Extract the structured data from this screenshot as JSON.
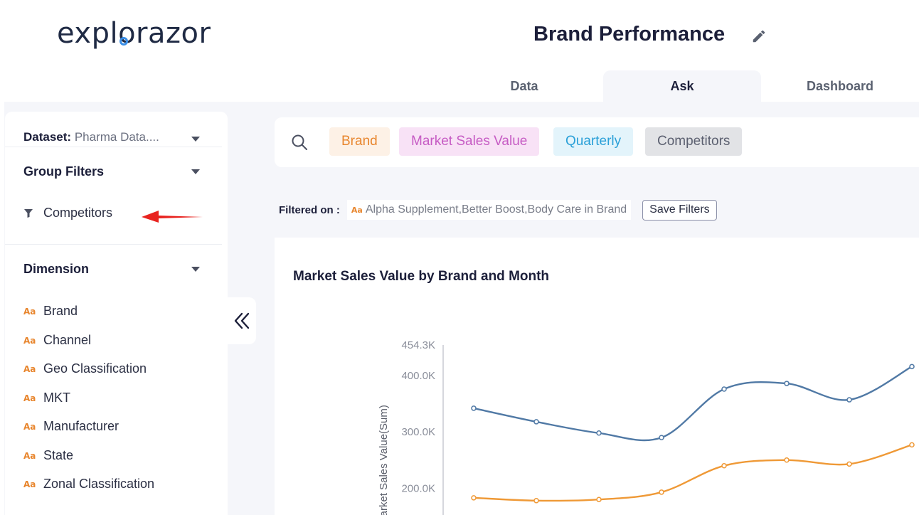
{
  "app": {
    "logo_text": "explorazor"
  },
  "header": {
    "title": "Brand Performance"
  },
  "tabs": [
    {
      "label": "Data",
      "active": false
    },
    {
      "label": "Ask",
      "active": true
    },
    {
      "label": "Dashboard",
      "active": false
    }
  ],
  "sidebar": {
    "dataset_label": "Dataset:",
    "dataset_value": "Pharma Data....",
    "group_filters_title": "Group Filters",
    "group_filter_item": "Competitors",
    "dimension_title": "Dimension",
    "dimensions": [
      "Brand",
      "Channel",
      "Geo Classification",
      "MKT",
      "Manufacturer",
      "State",
      "Zonal Classification"
    ],
    "aa_icon": "Aa"
  },
  "search": {
    "chips": {
      "brand": "Brand",
      "msv": "Market Sales Value",
      "quarterly": "Quarterly",
      "competitors": "Competitors"
    }
  },
  "filters": {
    "label": "Filtered on :",
    "value": "Alpha Supplement,Better Boost,Body Care in Brand",
    "save_label": "Save Filters"
  },
  "colors": {
    "accent_orange": "#e8862e",
    "series_blue": "#5079a5",
    "series_orange": "#ef9936",
    "arrow_red": "#e8231f"
  },
  "chart_data": {
    "type": "line",
    "title": "Market Sales Value by Brand and Month",
    "ylabel": "Market Sales Value(Sum)",
    "yticks": [
      "454.3K",
      "400.0K",
      "300.0K",
      "200.0K"
    ],
    "ytick_values": [
      454300,
      400000,
      300000,
      200000
    ],
    "ylim": [
      165000,
      454300
    ],
    "series": [
      {
        "color": "#5079a5",
        "values": [
          342000,
          318000,
          298000,
          290000,
          376000,
          386000,
          357000,
          416000
        ]
      },
      {
        "color": "#ef9936",
        "values": [
          183000,
          178000,
          180000,
          193000,
          240000,
          250000,
          243000,
          277000
        ]
      }
    ]
  }
}
